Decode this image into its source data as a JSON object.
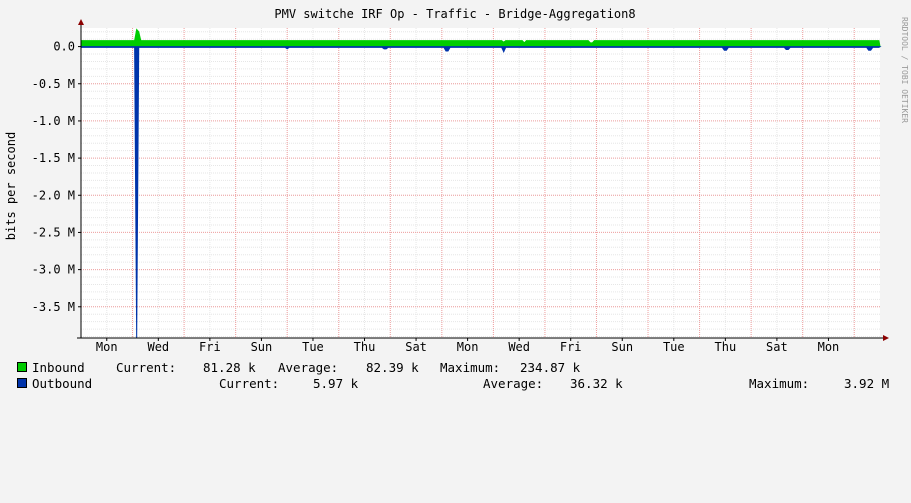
{
  "chart_data": {
    "type": "area",
    "title": "PMV switche IRF Op - Traffic - Bridge-Aggregation8",
    "ylabel": "bits per second",
    "watermark": "RRDTOOL / TOBI OETIKER",
    "ylim": [
      -3.92,
      0.25
    ],
    "y_ticks": [
      {
        "value": 0.0,
        "label": "0.0"
      },
      {
        "value": -0.5,
        "label": "-0.5 M"
      },
      {
        "value": -1.0,
        "label": "-1.0 M"
      },
      {
        "value": -1.5,
        "label": "-1.5 M"
      },
      {
        "value": -2.0,
        "label": "-2.0 M"
      },
      {
        "value": -2.5,
        "label": "-2.5 M"
      },
      {
        "value": -3.0,
        "label": "-3.0 M"
      },
      {
        "value": -3.5,
        "label": "-3.5 M"
      }
    ],
    "x_ticks": [
      "Mon",
      "Wed",
      "Fri",
      "Sun",
      "Tue",
      "Thu",
      "Sat",
      "Mon",
      "Wed",
      "Fri",
      "Sun",
      "Tue",
      "Thu",
      "Sat",
      "Mon"
    ],
    "x_range_days": [
      0,
      15.5
    ],
    "grid": true,
    "series": [
      {
        "name": "Inbound",
        "color": "#00CC00",
        "unit": "M",
        "baseline": 0.08,
        "spikes": [
          [
            1.08,
            0.23
          ],
          [
            1.12,
            0.2
          ],
          [
            8.2,
            0.06
          ],
          [
            8.6,
            0.05
          ],
          [
            9.9,
            0.05
          ]
        ],
        "current": "81.28 k",
        "average": "82.39 k",
        "maximum": "234.87 k"
      },
      {
        "name": "Outbound",
        "color": "#0033AA",
        "unit": "M",
        "baseline": -0.01,
        "spikes": [
          [
            1.08,
            -3.92
          ],
          [
            4.0,
            -0.03
          ],
          [
            5.9,
            -0.03
          ],
          [
            7.1,
            -0.06
          ],
          [
            8.2,
            -0.07
          ],
          [
            12.5,
            -0.05
          ],
          [
            13.7,
            -0.04
          ],
          [
            15.3,
            -0.05
          ]
        ],
        "current": "5.97 k",
        "average": "36.32 k",
        "maximum": "3.92 M"
      }
    ]
  },
  "legend_labels": {
    "current": "Current:",
    "average": "Average:",
    "maximum": "Maximum:"
  }
}
